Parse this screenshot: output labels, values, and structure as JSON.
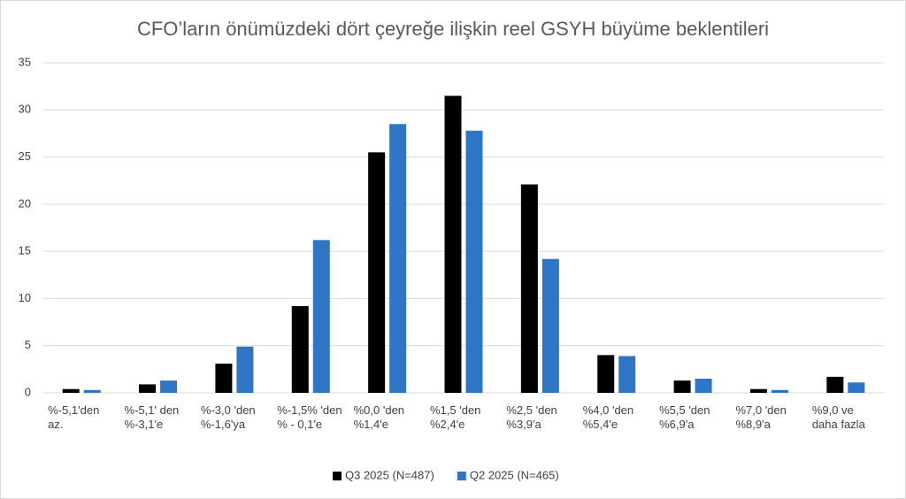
{
  "chart_data": {
    "type": "bar",
    "title": "CFO’ların önümüzdeki dört çeyreğe ilişkin reel GSYH büyüme beklentileri",
    "categories": [
      "%-5,1'den az.",
      "%-5,1' den %-3,1'e",
      "%-3,0 'den %-1,6'ya",
      "%-1,5% 'den % - 0,1'e",
      "%0,0 'den %1,4'e",
      "%1,5 'den %2,4'e",
      "%2,5 'den %3,9'a",
      "%4,0 'den %5,4'e",
      "%5,5 'den %6,9'a",
      "%7,0 'den %8,9'a",
      "%9,0 ve daha fazla"
    ],
    "series": [
      {
        "name": "Q3 2025 (N=487)",
        "color": "#000000",
        "values": [
          0.4,
          0.9,
          3.1,
          9.2,
          25.5,
          31.5,
          22.1,
          4.0,
          1.3,
          0.4,
          1.7
        ]
      },
      {
        "name": "Q2 2025 (N=465)",
        "color": "#2e75c6",
        "values": [
          0.3,
          1.3,
          4.9,
          16.2,
          28.5,
          27.8,
          14.2,
          3.9,
          1.5,
          0.3,
          1.1
        ]
      }
    ],
    "ylim": [
      0,
      35
    ],
    "yticks": [
      0,
      5,
      10,
      15,
      20,
      25,
      30,
      35
    ],
    "grid": true,
    "legend": "bottom"
  }
}
